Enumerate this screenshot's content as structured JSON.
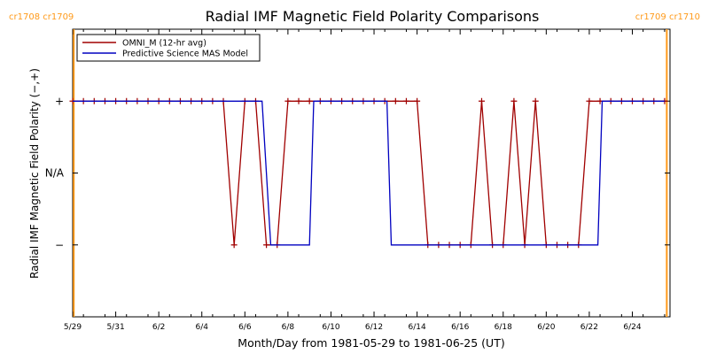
{
  "chart_data": {
    "type": "line",
    "title": "Radial IMF Magnetic Field Polarity Comparisons",
    "xlabel": "Month/Day from 1981-05-29 to 1981-06-25 (UT)",
    "ylabel": "Radial IMF Magnetic Field Polarity (−,+)",
    "xlim": [
      0,
      27.75
    ],
    "ylim": [
      -2,
      2
    ],
    "x_ticks": [
      {
        "x": 0,
        "label": "5/29"
      },
      {
        "x": 2,
        "label": "5/31"
      },
      {
        "x": 4,
        "label": "6/2"
      },
      {
        "x": 6,
        "label": "6/4"
      },
      {
        "x": 8,
        "label": "6/6"
      },
      {
        "x": 10,
        "label": "6/8"
      },
      {
        "x": 12,
        "label": "6/10"
      },
      {
        "x": 14,
        "label": "6/12"
      },
      {
        "x": 16,
        "label": "6/14"
      },
      {
        "x": 18,
        "label": "6/16"
      },
      {
        "x": 20,
        "label": "6/18"
      },
      {
        "x": 22,
        "label": "6/20"
      },
      {
        "x": 24,
        "label": "6/22"
      },
      {
        "x": 26,
        "label": "6/24"
      }
    ],
    "y_ticks": [
      {
        "y": 1,
        "label": "+"
      },
      {
        "y": 0,
        "label": "N/A"
      },
      {
        "y": -1,
        "label": "−"
      }
    ],
    "legend_position": "top-left",
    "carrington_markers": [
      {
        "x": 0.05,
        "label": "cr1708 cr1709",
        "side": "left"
      },
      {
        "x": 27.6,
        "label": "cr1709 cr1710",
        "side": "right"
      }
    ],
    "series": [
      {
        "name": "OMNI_M (12-hr avg)",
        "color": "#a00000",
        "markers": true,
        "points": [
          [
            0,
            1
          ],
          [
            0.5,
            1
          ],
          [
            1,
            1
          ],
          [
            1.5,
            1
          ],
          [
            2,
            1
          ],
          [
            2.5,
            1
          ],
          [
            3,
            1
          ],
          [
            3.5,
            1
          ],
          [
            4,
            1
          ],
          [
            4.5,
            1
          ],
          [
            5,
            1
          ],
          [
            5.5,
            1
          ],
          [
            6,
            1
          ],
          [
            6.5,
            1
          ],
          [
            7,
            1
          ],
          [
            7.5,
            -1
          ],
          [
            8,
            1
          ],
          [
            8.5,
            1
          ],
          [
            9,
            -1
          ],
          [
            9.5,
            -1
          ],
          [
            10,
            1
          ],
          [
            10.5,
            1
          ],
          [
            11,
            1
          ],
          [
            11.5,
            1
          ],
          [
            12,
            1
          ],
          [
            12.5,
            1
          ],
          [
            13,
            1
          ],
          [
            13.5,
            1
          ],
          [
            14,
            1
          ],
          [
            14.5,
            1
          ],
          [
            15,
            1
          ],
          [
            15.5,
            1
          ],
          [
            16,
            1
          ],
          [
            16.5,
            -1
          ],
          [
            17,
            -1
          ],
          [
            17.5,
            -1
          ],
          [
            18,
            -1
          ],
          [
            18.5,
            -1
          ],
          [
            19,
            1
          ],
          [
            19.5,
            -1
          ],
          [
            20,
            -1
          ],
          [
            20.5,
            1
          ],
          [
            21,
            -1
          ],
          [
            21.5,
            1
          ],
          [
            22,
            -1
          ],
          [
            22.5,
            -1
          ],
          [
            23,
            -1
          ],
          [
            23.5,
            -1
          ],
          [
            24,
            1
          ],
          [
            24.5,
            1
          ],
          [
            25,
            1
          ],
          [
            25.5,
            1
          ],
          [
            26,
            1
          ],
          [
            26.5,
            1
          ],
          [
            27,
            1
          ],
          [
            27.5,
            1
          ]
        ]
      },
      {
        "name": "Predictive Science MAS Model",
        "color": "#0000c0",
        "markers": false,
        "points": [
          [
            0,
            1
          ],
          [
            8.8,
            1
          ],
          [
            9.2,
            -1
          ],
          [
            11,
            -1
          ],
          [
            11.2,
            1
          ],
          [
            14.6,
            1
          ],
          [
            14.8,
            -1
          ],
          [
            24.4,
            -1
          ],
          [
            24.6,
            1
          ],
          [
            27.5,
            1
          ]
        ]
      }
    ]
  }
}
